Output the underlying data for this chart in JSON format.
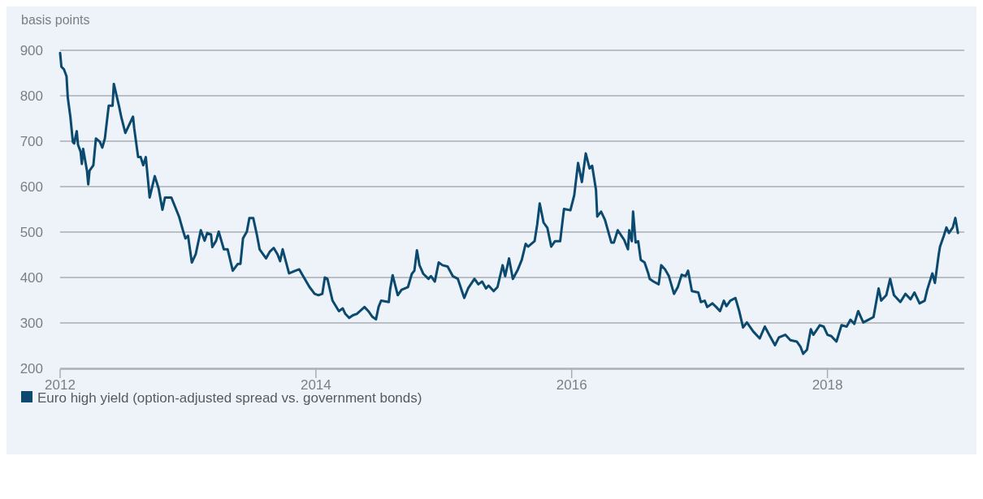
{
  "chart_data": {
    "type": "line",
    "ylabel": "basis points",
    "xlim": [
      2012,
      2019.07
    ],
    "xticks": [
      2012,
      2014,
      2016,
      2018
    ],
    "ylim": [
      200,
      900
    ],
    "yticks": [
      200,
      300,
      400,
      500,
      600,
      700,
      800,
      900
    ],
    "grid": "y",
    "legend": "bottom",
    "marker": "none",
    "line_style": "solid",
    "series": [
      {
        "name": "Euro high yield (option-adjusted spread vs. government bonds)",
        "color": "#0b4a6e",
        "x": [
          2012.0,
          2012.01,
          2012.03,
          2012.05,
          2012.06,
          2012.08,
          2012.1,
          2012.11,
          2012.13,
          2012.14,
          2012.16,
          2012.17,
          2012.18,
          2012.21,
          2012.22,
          2012.23,
          2012.26,
          2012.28,
          2012.31,
          2012.33,
          2012.35,
          2012.38,
          2012.41,
          2012.42,
          2012.44,
          2012.46,
          2012.48,
          2012.51,
          2012.53,
          2012.57,
          2012.58,
          2012.61,
          2012.63,
          2012.65,
          2012.67,
          2012.7,
          2012.74,
          2012.77,
          2012.8,
          2012.82,
          2012.87,
          2012.93,
          2012.96,
          2012.98,
          2013.0,
          2013.03,
          2013.06,
          2013.1,
          2013.13,
          2013.15,
          2013.18,
          2013.19,
          2013.22,
          2013.24,
          2013.28,
          2013.31,
          2013.35,
          2013.39,
          2013.41,
          2013.43,
          2013.46,
          2013.48,
          2013.51,
          2013.54,
          2013.56,
          2013.61,
          2013.64,
          2013.67,
          2013.7,
          2013.72,
          2013.74,
          2013.79,
          2013.84,
          2013.87,
          2013.9,
          2013.95,
          2013.99,
          2014.02,
          2014.05,
          2014.07,
          2014.09,
          2014.13,
          2014.18,
          2014.21,
          2014.23,
          2014.26,
          2014.29,
          2014.32,
          2014.38,
          2014.41,
          2014.44,
          2014.47,
          2014.49,
          2014.51,
          2014.57,
          2014.58,
          2014.6,
          2014.64,
          2014.67,
          2014.72,
          2014.75,
          2014.77,
          2014.79,
          2014.81,
          2014.84,
          2014.88,
          2014.9,
          2014.93,
          2014.96,
          2014.99,
          2015.03,
          2015.07,
          2015.11,
          2015.16,
          2015.19,
          2015.24,
          2015.27,
          2015.3,
          2015.33,
          2015.35,
          2015.39,
          2015.42,
          2015.46,
          2015.48,
          2015.51,
          2015.54,
          2015.58,
          2015.61,
          2015.64,
          2015.66,
          2015.71,
          2015.73,
          2015.75,
          2015.78,
          2015.81,
          2015.84,
          2015.87,
          2015.91,
          2015.94,
          2015.99,
          2016.02,
          2016.05,
          2016.08,
          2016.11,
          2016.14,
          2016.16,
          2016.19,
          2016.2,
          2016.23,
          2016.26,
          2016.31,
          2016.33,
          2016.36,
          2016.41,
          2016.44,
          2016.45,
          2016.47,
          2016.48,
          2016.5,
          2016.52,
          2016.54,
          2016.57,
          2016.6,
          2016.61,
          2016.64,
          2016.68,
          2016.7,
          2016.73,
          2016.76,
          2016.8,
          2016.83,
          2016.86,
          2016.89,
          2016.91,
          2016.94,
          2016.99,
          2017.01,
          2017.04,
          2017.06,
          2017.1,
          2017.13,
          2017.16,
          2017.19,
          2017.21,
          2017.24,
          2017.28,
          2017.31,
          2017.34,
          2017.37,
          2017.42,
          2017.47,
          2017.51,
          2017.55,
          2017.59,
          2017.62,
          2017.67,
          2017.71,
          2017.76,
          2017.79,
          2017.81,
          2017.84,
          2017.87,
          2017.89,
          2017.94,
          2017.97,
          2018.0,
          2018.03,
          2018.07,
          2018.11,
          2018.15,
          2018.18,
          2018.21,
          2018.24,
          2018.28,
          2018.32,
          2018.36,
          2018.4,
          2018.42,
          2018.46,
          2018.49,
          2018.52,
          2018.57,
          2018.61,
          2018.65,
          2018.68,
          2018.72,
          2018.76,
          2018.78,
          2018.82,
          2018.84,
          2018.87,
          2018.88,
          2018.91,
          2018.93,
          2018.95,
          2018.98,
          2019.0,
          2019.02
        ],
        "values": [
          894,
          864,
          858,
          843,
          796,
          754,
          698,
          695,
          722,
          692,
          677,
          650,
          683,
          635,
          605,
          635,
          647,
          706,
          699,
          686,
          706,
          778,
          778,
          826,
          802,
          778,
          751,
          718,
          730,
          754,
          727,
          665,
          665,
          647,
          665,
          576,
          623,
          596,
          549,
          576,
          576,
          534,
          504,
          486,
          492,
          433,
          451,
          504,
          481,
          498,
          495,
          467,
          481,
          501,
          462,
          462,
          415,
          430,
          430,
          486,
          501,
          531,
          531,
          492,
          462,
          442,
          457,
          465,
          451,
          436,
          462,
          409,
          415,
          418,
          403,
          379,
          364,
          361,
          364,
          400,
          397,
          349,
          326,
          332,
          320,
          311,
          317,
          320,
          335,
          326,
          314,
          308,
          335,
          349,
          346,
          373,
          405,
          361,
          373,
          379,
          408,
          415,
          460,
          427,
          408,
          397,
          403,
          391,
          433,
          427,
          424,
          403,
          397,
          355,
          376,
          397,
          385,
          391,
          376,
          382,
          370,
          379,
          427,
          403,
          442,
          397,
          418,
          439,
          474,
          468,
          480,
          516,
          563,
          521,
          509,
          468,
          480,
          480,
          551,
          548,
          581,
          652,
          610,
          673,
          640,
          646,
          593,
          534,
          545,
          527,
          477,
          477,
          504,
          483,
          462,
          504,
          480,
          545,
          477,
          480,
          439,
          433,
          408,
          397,
          391,
          385,
          427,
          418,
          403,
          364,
          379,
          406,
          403,
          415,
          370,
          367,
          346,
          349,
          335,
          343,
          335,
          326,
          349,
          337,
          349,
          355,
          326,
          290,
          301,
          281,
          266,
          292,
          271,
          251,
          268,
          274,
          262,
          259,
          247,
          232,
          241,
          286,
          274,
          295,
          292,
          274,
          271,
          259,
          295,
          292,
          307,
          298,
          326,
          301,
          307,
          313,
          376,
          349,
          361,
          397,
          361,
          346,
          364,
          352,
          367,
          343,
          349,
          373,
          409,
          388,
          451,
          468,
          492,
          510,
          498,
          510,
          531,
          498
        ]
      }
    ]
  }
}
